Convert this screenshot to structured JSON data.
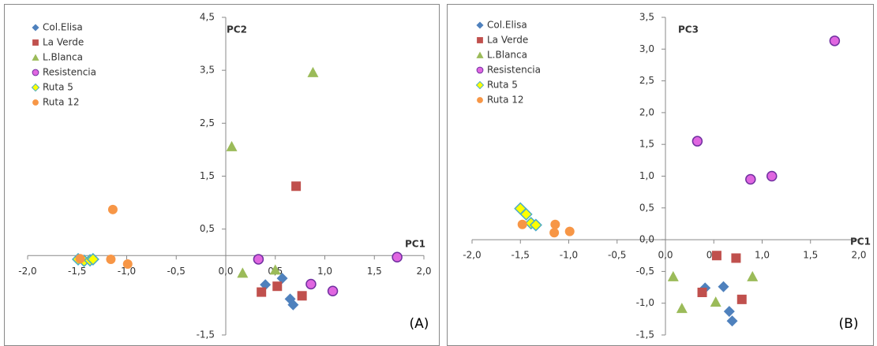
{
  "chart_data": [
    {
      "type": "scatter",
      "x_label": "PC1",
      "y_label": "PC2",
      "panel_label": "(A)",
      "xlim": [
        -2,
        2
      ],
      "ylim": [
        -1.5,
        4.5
      ],
      "xticks": [
        {
          "value": -2,
          "label": "-2,0"
        },
        {
          "value": -1.5,
          "label": "-1,5"
        },
        {
          "value": -1,
          "label": "-1,0"
        },
        {
          "value": -0.5,
          "label": "-0,5"
        },
        {
          "value": 0,
          "label": "0,0"
        },
        {
          "value": 0.5,
          "label": "0,5"
        },
        {
          "value": 1,
          "label": "1,0"
        },
        {
          "value": 1.5,
          "label": "1,5"
        },
        {
          "value": 2,
          "label": "2,0"
        }
      ],
      "yticks": [
        {
          "value": 4.5,
          "label": "4,5"
        },
        {
          "value": 3.5,
          "label": "3,5"
        },
        {
          "value": 2.5,
          "label": "2,5"
        },
        {
          "value": 1.5,
          "label": "1,5"
        },
        {
          "value": 0.5,
          "label": "0,5"
        },
        {
          "value": -1.5,
          "label": "-1,5"
        }
      ],
      "series": [
        {
          "name": "Col.Elisa",
          "color": "#4f81bd",
          "marker": "diamond",
          "x": [
            0.4,
            0.57,
            0.65,
            0.68
          ],
          "y": [
            -0.55,
            -0.43,
            -0.82,
            -0.93
          ]
        },
        {
          "name": "La Verde",
          "color": "#c0504d",
          "marker": "square",
          "x": [
            0.71,
            0.36,
            0.52,
            0.77
          ],
          "y": [
            1.31,
            -0.69,
            -0.58,
            -0.76
          ]
        },
        {
          "name": "L.Blanca",
          "color": "#9bbb59",
          "marker": "triangle",
          "x": [
            0.06,
            0.88,
            0.17,
            0.5
          ],
          "y": [
            2.06,
            3.46,
            -0.33,
            -0.27
          ]
        },
        {
          "name": "Resistencia",
          "color": "#e066e0",
          "edge_color": "#7030a0",
          "marker": "circle",
          "x": [
            1.73,
            0.33,
            0.86,
            1.08
          ],
          "y": [
            -0.03,
            -0.07,
            -0.54,
            -0.67
          ]
        },
        {
          "name": "Ruta 5",
          "color": "#ffff00",
          "edge_color": "#4bacc6",
          "marker": "diamond",
          "x": [
            -1.49,
            -1.43,
            -1.37,
            -1.34
          ],
          "y": [
            -0.07,
            -0.1,
            -0.09,
            -0.07
          ]
        },
        {
          "name": "Ruta 12",
          "color": "#f79646",
          "marker": "circle",
          "x": [
            -1.14,
            -1.47,
            -1.16,
            -0.99
          ],
          "y": [
            0.87,
            -0.06,
            -0.07,
            -0.16
          ]
        }
      ]
    },
    {
      "type": "scatter",
      "x_label": "PC1",
      "y_label": "PC3",
      "panel_label": "(B)",
      "xlim": [
        -2,
        2
      ],
      "ylim": [
        -1.5,
        3.5
      ],
      "xticks": [
        {
          "value": -2,
          "label": "-2,0"
        },
        {
          "value": -1.5,
          "label": "-1,5"
        },
        {
          "value": -1,
          "label": "-1,0"
        },
        {
          "value": -0.5,
          "label": "-0,5"
        },
        {
          "value": 0,
          "label": "0,0"
        },
        {
          "value": 0.5,
          "label": "0,5"
        },
        {
          "value": 1,
          "label": "1,0"
        },
        {
          "value": 1.5,
          "label": "1,5"
        },
        {
          "value": 2,
          "label": "2,0"
        }
      ],
      "yticks": [
        {
          "value": 3.5,
          "label": "3,5"
        },
        {
          "value": 3,
          "label": "3,0"
        },
        {
          "value": 2.5,
          "label": "2,5"
        },
        {
          "value": 2,
          "label": "2,0"
        },
        {
          "value": 1.5,
          "label": "1,5"
        },
        {
          "value": 1,
          "label": "1,0"
        },
        {
          "value": 0.5,
          "label": "0,5"
        },
        {
          "value": 0,
          "label": "0,0"
        },
        {
          "value": -0.5,
          "label": "-0,5"
        },
        {
          "value": -1,
          "label": "-1,0"
        },
        {
          "value": -1.5,
          "label": "-1,5"
        }
      ],
      "series": [
        {
          "name": "Col.Elisa",
          "color": "#4f81bd",
          "marker": "diamond",
          "x": [
            0.41,
            0.6,
            0.66,
            0.69
          ],
          "y": [
            -0.76,
            -0.74,
            -1.13,
            -1.28
          ]
        },
        {
          "name": "La Verde",
          "color": "#c0504d",
          "marker": "square",
          "x": [
            0.53,
            0.73,
            0.38,
            0.79
          ],
          "y": [
            -0.25,
            -0.29,
            -0.83,
            -0.94
          ]
        },
        {
          "name": "L.Blanca",
          "color": "#9bbb59",
          "marker": "triangle",
          "x": [
            0.08,
            0.17,
            0.52,
            0.9
          ],
          "y": [
            -0.58,
            -1.08,
            -0.98,
            -0.58
          ]
        },
        {
          "name": "Resistencia",
          "color": "#e066e0",
          "edge_color": "#7030a0",
          "marker": "circle",
          "x": [
            0.33,
            0.88,
            1.1,
            1.75
          ],
          "y": [
            1.55,
            0.95,
            1.0,
            3.13
          ]
        },
        {
          "name": "Ruta 5",
          "color": "#ffff00",
          "edge_color": "#4bacc6",
          "marker": "diamond",
          "x": [
            -1.5,
            -1.44,
            -1.39,
            -1.34
          ],
          "y": [
            0.49,
            0.4,
            0.26,
            0.23
          ]
        },
        {
          "name": "Ruta 12",
          "color": "#f79646",
          "marker": "circle",
          "x": [
            -1.48,
            -1.14,
            -1.15,
            -0.99
          ],
          "y": [
            0.24,
            0.24,
            0.11,
            0.13
          ]
        }
      ]
    }
  ]
}
